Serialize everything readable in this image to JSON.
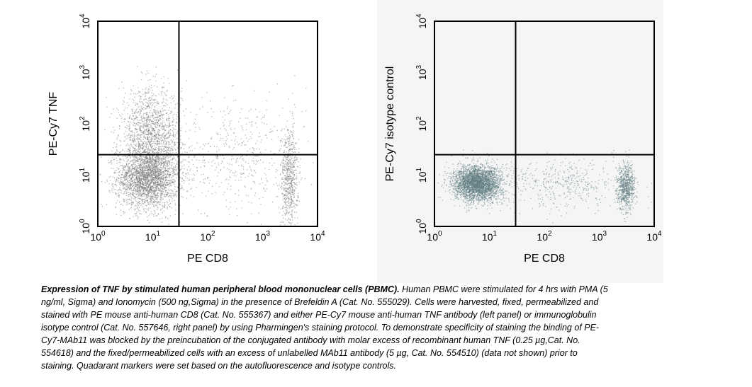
{
  "chart_data": [
    {
      "type": "scatter",
      "xlabel": "PE CD8",
      "ylabel": "PE-Cy7 TNF",
      "xscale": "log",
      "yscale": "log",
      "xlim": [
        1,
        10000
      ],
      "ylim": [
        1,
        10000
      ],
      "x_ticks": [
        "10",
        "10",
        "10",
        "10",
        "10"
      ],
      "x_tick_exps": [
        "0",
        "1",
        "2",
        "3",
        "4"
      ],
      "y_ticks": [
        "10",
        "10",
        "10",
        "10",
        "10"
      ],
      "y_tick_exps": [
        "0",
        "1",
        "2",
        "3",
        "4"
      ],
      "quadrant_x": 30,
      "quadrant_y": 25,
      "point_color": "#777777",
      "populations": [
        {
          "x_center": 8,
          "y_center": 9,
          "x_spread_decades": 0.28,
          "y_spread_decades": 0.3,
          "count": 2600
        },
        {
          "x_center": 9,
          "y_center": 60,
          "x_spread_decades": 0.27,
          "y_spread_decades": 0.45,
          "count": 1500
        },
        {
          "x_center": 3000,
          "y_center": 9,
          "x_spread_decades": 0.08,
          "y_spread_decades": 0.5,
          "count": 650
        },
        {
          "x_center": 300,
          "y_center": 25,
          "x_spread_decades": 0.65,
          "y_spread_decades": 0.6,
          "count": 550
        }
      ]
    },
    {
      "type": "scatter",
      "xlabel": "PE CD8",
      "ylabel": "PE-Cy7 isotype control",
      "xscale": "log",
      "yscale": "log",
      "xlim": [
        1,
        10000
      ],
      "ylim": [
        1,
        10000
      ],
      "x_ticks": [
        "10",
        "10",
        "10",
        "10",
        "10"
      ],
      "x_tick_exps": [
        "0",
        "1",
        "2",
        "3",
        "4"
      ],
      "y_ticks": [
        "10",
        "10",
        "10",
        "10",
        "10"
      ],
      "y_tick_exps": [
        "0",
        "1",
        "2",
        "3",
        "4"
      ],
      "quadrant_x": 30,
      "quadrant_y": 25,
      "point_color": "#5f7c82",
      "populations": [
        {
          "x_center": 6,
          "y_center": 7,
          "x_spread_decades": 0.22,
          "y_spread_decades": 0.17,
          "count": 3200
        },
        {
          "x_center": 3000,
          "y_center": 6,
          "x_spread_decades": 0.08,
          "y_spread_decades": 0.22,
          "count": 750
        },
        {
          "x_center": 250,
          "y_center": 7,
          "x_spread_decades": 0.6,
          "y_spread_decades": 0.25,
          "count": 450
        }
      ]
    }
  ],
  "caption": {
    "title": "Expression of TNF by stimulated human peripheral blood mononuclear cells (PBMC).",
    "body": " Human PBMC were stimulated for 4 hrs with PMA (5 ng/ml, Sigma) and Ionomycin (500 ng,Sigma) in the presence of Brefeldin A (Cat. No. 555029). Cells were harvested, fixed, permeabilized and stained with PE mouse anti-human CD8 (Cat. No. 555367) and either PE-Cy7 mouse anti-human TNF antibody (left panel) or immunoglobulin isotype control (Cat. No. 557646, right panel) by using Pharmingen's staining protocol. To demonstrate specificity of staining the binding of PE-Cy7-MAb11 was blocked by the preincubation of the conjugated antibody with molar excess of recombinant human TNF (0.25 µg,Cat. No. 554618) and the fixed/permeabilized cells with an excess of unlabelled MAb11 antibody (5 µg, Cat. No. 554510) (data not shown) prior to staining. Quadarant markers were set based on the autofluorescence and isotype controls."
  }
}
